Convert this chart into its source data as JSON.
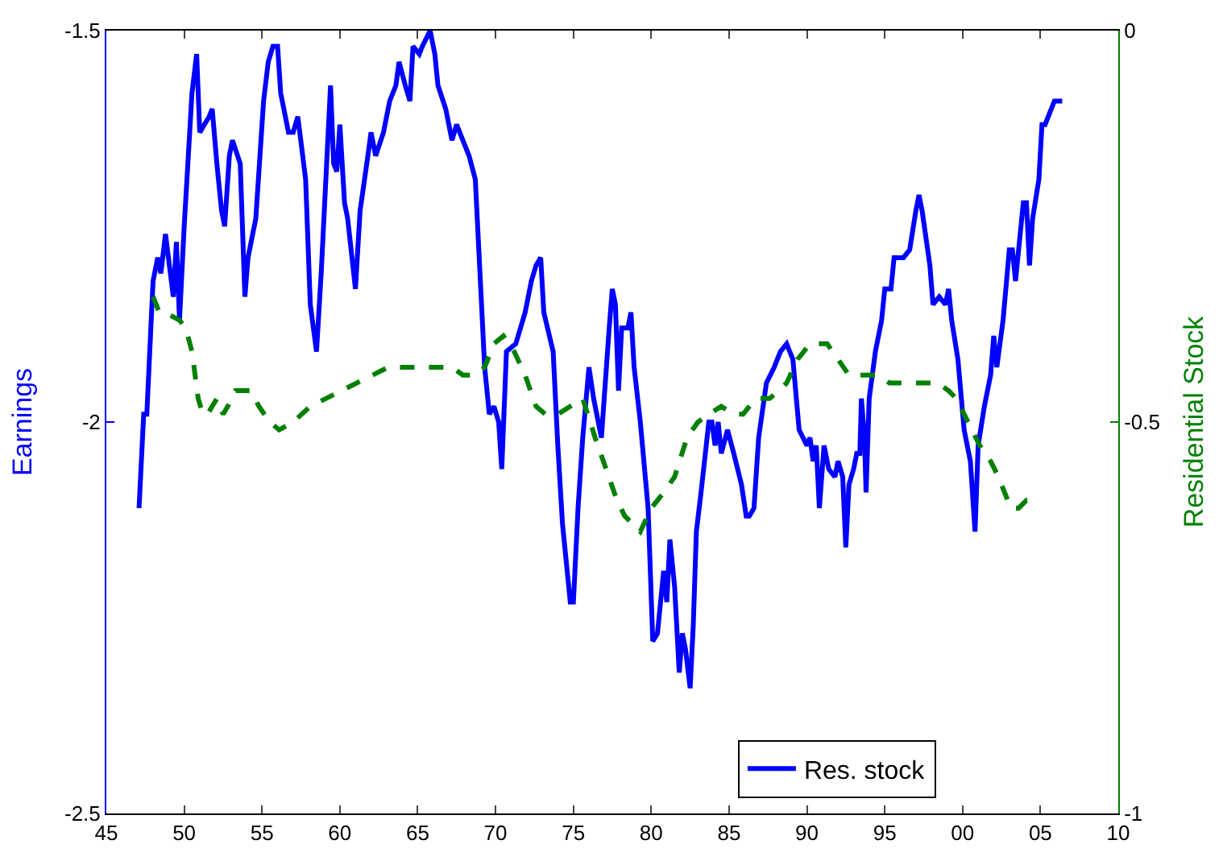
{
  "chart_data": {
    "type": "line",
    "ylabel": "Earnings",
    "y2label": "Residential Stock",
    "xlim": [
      1945,
      2010
    ],
    "xticks": [
      {
        "value": 1945,
        "label": "45"
      },
      {
        "value": 1950,
        "label": "50"
      },
      {
        "value": 1955,
        "label": "55"
      },
      {
        "value": 1960,
        "label": "60"
      },
      {
        "value": 1965,
        "label": "65"
      },
      {
        "value": 1970,
        "label": "70"
      },
      {
        "value": 1975,
        "label": "75"
      },
      {
        "value": 1980,
        "label": "80"
      },
      {
        "value": 1985,
        "label": "85"
      },
      {
        "value": 1990,
        "label": "90"
      },
      {
        "value": 1995,
        "label": "95"
      },
      {
        "value": 2000,
        "label": "00"
      },
      {
        "value": 2005,
        "label": "05"
      },
      {
        "value": 2010,
        "label": "10"
      }
    ],
    "ylim": [
      -2.5,
      -1.5
    ],
    "yticks": [
      -2.5,
      -2,
      -1.5
    ],
    "y2lim": [
      -1,
      0
    ],
    "y2ticks": [
      -1,
      -0.5,
      0
    ],
    "legend": "bottom right",
    "marker": "none",
    "series": [
      {
        "name": "Res. stock",
        "color": "#0000ff",
        "line_style": "solid",
        "x": [
          1947.1,
          1947.4,
          1947.6,
          1948.0,
          1948.3,
          1948.5,
          1948.8,
          1949.3,
          1949.5,
          1949.7,
          1950.0,
          1950.5,
          1950.8,
          1951.0,
          1951.6,
          1951.8,
          1952.1,
          1952.4,
          1952.6,
          1952.9,
          1953.1,
          1953.6,
          1953.9,
          1954.1,
          1954.6,
          1955.1,
          1955.4,
          1955.7,
          1956.0,
          1956.2,
          1956.7,
          1957.0,
          1957.3,
          1957.8,
          1958.1,
          1958.5,
          1958.8,
          1959.1,
          1959.4,
          1959.6,
          1959.8,
          1960.0,
          1960.3,
          1960.5,
          1961.0,
          1961.3,
          1961.8,
          1962.0,
          1962.3,
          1962.8,
          1963.2,
          1963.6,
          1963.8,
          1964.2,
          1964.5,
          1964.7,
          1965.1,
          1965.3,
          1965.8,
          1966.1,
          1966.3,
          1966.8,
          1967.2,
          1967.5,
          1967.9,
          1968.3,
          1968.7,
          1969.0,
          1969.3,
          1969.6,
          1969.9,
          1970.2,
          1970.4,
          1970.7,
          1971.3,
          1971.9,
          1972.3,
          1972.6,
          1972.9,
          1973.1,
          1973.7,
          1974.0,
          1974.3,
          1974.8,
          1975.0,
          1975.3,
          1975.6,
          1976.0,
          1976.3,
          1976.8,
          1977.3,
          1977.5,
          1977.7,
          1977.9,
          1978.1,
          1978.5,
          1978.7,
          1978.9,
          1979.3,
          1979.8,
          1980.1,
          1980.4,
          1980.8,
          1981.0,
          1981.2,
          1981.5,
          1981.8,
          1982.0,
          1982.2,
          1982.5,
          1982.7,
          1982.9,
          1983.2,
          1983.7,
          1983.9,
          1984.1,
          1984.3,
          1984.5,
          1984.9,
          1985.3,
          1985.8,
          1986.1,
          1986.3,
          1986.6,
          1986.9,
          1987.4,
          1987.9,
          1988.3,
          1988.7,
          1989.1,
          1989.5,
          1990.0,
          1990.2,
          1990.4,
          1990.6,
          1990.8,
          1991.1,
          1991.4,
          1991.8,
          1992.0,
          1992.3,
          1992.5,
          1992.7,
          1993.0,
          1993.2,
          1993.4,
          1993.5,
          1993.7,
          1993.8,
          1994.0,
          1994.4,
          1994.8,
          1995.0,
          1995.4,
          1995.6,
          1996.2,
          1996.6,
          1997.0,
          1997.2,
          1997.4,
          1997.9,
          1998.1,
          1998.5,
          1998.9,
          1999.1,
          1999.3,
          1999.7,
          2000.1,
          2000.5,
          2000.8,
          2001.0,
          2001.4,
          2001.8,
          2002.0,
          2002.2,
          2002.6,
          2003.0,
          2003.2,
          2003.4,
          2003.9,
          2004.1,
          2004.3,
          2004.5,
          2004.9,
          2005.1,
          2005.3,
          2005.5,
          2005.9,
          2006.4
        ],
        "values": [
          -2.11,
          -1.99,
          -1.99,
          -1.82,
          -1.79,
          -1.81,
          -1.76,
          -1.84,
          -1.77,
          -1.87,
          -1.75,
          -1.58,
          -1.53,
          -1.63,
          -1.61,
          -1.6,
          -1.67,
          -1.73,
          -1.75,
          -1.66,
          -1.64,
          -1.67,
          -1.84,
          -1.79,
          -1.74,
          -1.59,
          -1.54,
          -1.52,
          -1.52,
          -1.58,
          -1.63,
          -1.63,
          -1.61,
          -1.69,
          -1.85,
          -1.91,
          -1.81,
          -1.69,
          -1.57,
          -1.67,
          -1.68,
          -1.62,
          -1.72,
          -1.74,
          -1.83,
          -1.73,
          -1.66,
          -1.63,
          -1.66,
          -1.63,
          -1.59,
          -1.57,
          -1.54,
          -1.57,
          -1.59,
          -1.52,
          -1.53,
          -1.52,
          -1.5,
          -1.53,
          -1.57,
          -1.6,
          -1.64,
          -1.62,
          -1.64,
          -1.66,
          -1.69,
          -1.81,
          -1.93,
          -1.99,
          -1.98,
          -2.0,
          -2.06,
          -1.91,
          -1.9,
          -1.86,
          -1.82,
          -1.8,
          -1.79,
          -1.86,
          -1.91,
          -2.03,
          -2.13,
          -2.23,
          -2.23,
          -2.11,
          -2.02,
          -1.93,
          -1.97,
          -2.02,
          -1.88,
          -1.83,
          -1.85,
          -1.96,
          -1.88,
          -1.88,
          -1.86,
          -1.93,
          -2.0,
          -2.11,
          -2.28,
          -2.27,
          -2.19,
          -2.23,
          -2.15,
          -2.21,
          -2.32,
          -2.27,
          -2.29,
          -2.34,
          -2.26,
          -2.14,
          -2.09,
          -2.0,
          -2.0,
          -2.03,
          -2.0,
          -2.04,
          -2.01,
          -2.04,
          -2.08,
          -2.12,
          -2.12,
          -2.11,
          -2.02,
          -1.95,
          -1.93,
          -1.91,
          -1.9,
          -1.92,
          -2.01,
          -2.03,
          -2.02,
          -2.05,
          -2.03,
          -2.11,
          -2.03,
          -2.06,
          -2.07,
          -2.05,
          -2.07,
          -2.16,
          -2.08,
          -2.06,
          -2.04,
          -2.04,
          -1.97,
          -2.02,
          -2.09,
          -1.97,
          -1.91,
          -1.87,
          -1.83,
          -1.83,
          -1.79,
          -1.79,
          -1.78,
          -1.73,
          -1.71,
          -1.73,
          -1.8,
          -1.85,
          -1.84,
          -1.85,
          -1.83,
          -1.87,
          -1.92,
          -2.01,
          -2.05,
          -2.14,
          -2.03,
          -1.98,
          -1.94,
          -1.89,
          -1.93,
          -1.87,
          -1.78,
          -1.78,
          -1.82,
          -1.72,
          -1.72,
          -1.8,
          -1.74,
          -1.69,
          -1.62,
          -1.62,
          -1.61,
          -1.59,
          -1.59
        ]
      },
      {
        "color": "#008000",
        "axis": "y2",
        "line_style": "dashed",
        "x": [
          1948.0,
          1948.4,
          1948.8,
          1949.7,
          1950.1,
          1950.5,
          1950.9,
          1951.2,
          1951.5,
          1951.8,
          1952.1,
          1952.5,
          1952.8,
          1953.3,
          1953.8,
          1954.3,
          1954.8,
          1955.5,
          1956.1,
          1957.0,
          1958.1,
          1959.1,
          1960.1,
          1961.1,
          1962.1,
          1963.1,
          1964.1,
          1965.1,
          1966.2,
          1967.2,
          1967.9,
          1968.7,
          1969.3,
          1969.9,
          1970.5,
          1971.2,
          1971.9,
          1972.6,
          1973.2,
          1974.0,
          1974.8,
          1975.6,
          1976.4,
          1977.1,
          1977.8,
          1978.3,
          1978.8,
          1979.3,
          1980.0,
          1980.8,
          1981.5,
          1982.3,
          1983.0,
          1983.7,
          1984.5,
          1985.3,
          1985.9,
          1986.7,
          1987.6,
          1988.2,
          1988.7,
          1989.4,
          1990.2,
          1990.8,
          1991.3,
          1992.0,
          1992.7,
          1993.6,
          1994.6,
          1995.3,
          1996.0,
          1996.8,
          1997.5,
          1998.4,
          1999.1,
          1999.6,
          2000.1,
          2000.6,
          2001.1,
          2001.8,
          2002.3,
          2003.1,
          2003.6,
          2004.1,
          2004.4
        ],
        "values": [
          -0.34,
          -0.36,
          -0.36,
          -0.37,
          -0.38,
          -0.41,
          -0.47,
          -0.49,
          -0.49,
          -0.48,
          -0.47,
          -0.49,
          -0.48,
          -0.46,
          -0.46,
          -0.46,
          -0.48,
          -0.5,
          -0.51,
          -0.5,
          -0.48,
          -0.47,
          -0.46,
          -0.45,
          -0.44,
          -0.43,
          -0.43,
          -0.43,
          -0.43,
          -0.43,
          -0.44,
          -0.44,
          -0.43,
          -0.4,
          -0.39,
          -0.41,
          -0.44,
          -0.48,
          -0.49,
          -0.49,
          -0.48,
          -0.47,
          -0.52,
          -0.56,
          -0.6,
          -0.62,
          -0.63,
          -0.64,
          -0.61,
          -0.59,
          -0.57,
          -0.52,
          -0.5,
          -0.49,
          -0.48,
          -0.49,
          -0.49,
          -0.47,
          -0.47,
          -0.46,
          -0.45,
          -0.42,
          -0.4,
          -0.4,
          -0.4,
          -0.42,
          -0.44,
          -0.44,
          -0.44,
          -0.45,
          -0.45,
          -0.45,
          -0.45,
          -0.45,
          -0.46,
          -0.47,
          -0.49,
          -0.51,
          -0.53,
          -0.55,
          -0.57,
          -0.61,
          -0.61,
          -0.6,
          -0.6
        ]
      }
    ]
  }
}
